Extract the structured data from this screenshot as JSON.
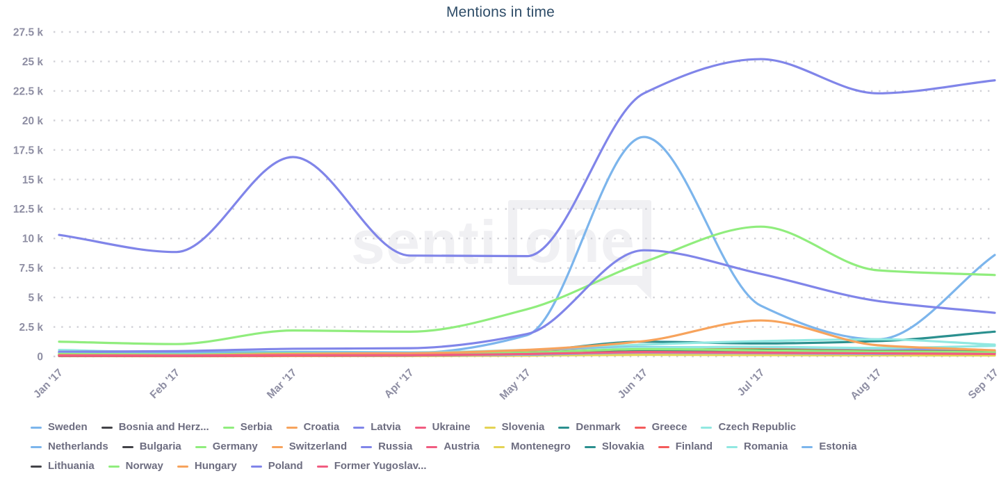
{
  "chart": {
    "title": "Mentions in time",
    "watermark": {
      "part1": "senti",
      "part2": "one"
    }
  },
  "style": {
    "title_color": "#2f4d68",
    "axis_label_color": "#8e8ea3",
    "legend_text_color": "#6d6d80",
    "gridline_color": "#d0d0d6",
    "watermark_color": "#f0f0f3",
    "palette": [
      "#7cb5ec",
      "#434348",
      "#90ed7d",
      "#f7a35c",
      "#8085e9",
      "#f15c80",
      "#e4d354",
      "#2b908f",
      "#f45b5b",
      "#91e8e1"
    ]
  },
  "chart_data": {
    "type": "line",
    "title": "Mentions in time",
    "xlabel": "",
    "ylabel": "",
    "grid": "dotted horizontal gridlines",
    "legend_position": "bottom",
    "x_categories": [
      "Jan '17",
      "Feb '17",
      "Mar '17",
      "Apr '17",
      "May '17",
      "Jun '17",
      "Jul '17",
      "Aug '17",
      "Sep '17"
    ],
    "y_axis": {
      "min": 0,
      "max": 27500,
      "tick_interval": 2500,
      "tick_labels": [
        "0",
        "2.5 k",
        "5 k",
        "7.5 k",
        "10 k",
        "12.5 k",
        "15 k",
        "17.5 k",
        "20 k",
        "22.5 k",
        "25 k",
        "27.5 k"
      ]
    },
    "series": [
      {
        "name": "Sweden",
        "color": "#7cb5ec",
        "values": [
          350,
          300,
          330,
          300,
          1800,
          18600,
          4300,
          1450,
          8600
        ]
      },
      {
        "name": "Bosnia and Herz...",
        "color": "#434348",
        "values": [
          90,
          80,
          100,
          110,
          200,
          400,
          350,
          280,
          220
        ]
      },
      {
        "name": "Serbia",
        "color": "#90ed7d",
        "values": [
          150,
          120,
          160,
          150,
          250,
          450,
          400,
          320,
          260
        ]
      },
      {
        "name": "Croatia",
        "color": "#f7a35c",
        "values": [
          160,
          130,
          190,
          210,
          320,
          600,
          520,
          400,
          310
        ]
      },
      {
        "name": "Latvia",
        "color": "#8085e9",
        "values": [
          300,
          260,
          310,
          300,
          420,
          750,
          820,
          620,
          520
        ]
      },
      {
        "name": "Ukraine",
        "color": "#f15c80",
        "values": [
          150,
          130,
          180,
          200,
          260,
          420,
          390,
          340,
          290
        ]
      },
      {
        "name": "Slovenia",
        "color": "#e4d354",
        "values": [
          35,
          30,
          45,
          50,
          80,
          150,
          130,
          100,
          90
        ]
      },
      {
        "name": "Denmark",
        "color": "#2b908f",
        "values": [
          60,
          60,
          100,
          150,
          450,
          1250,
          1100,
          1300,
          2100
        ]
      },
      {
        "name": "Greece",
        "color": "#f45b5b",
        "values": [
          70,
          60,
          90,
          110,
          220,
          500,
          450,
          380,
          330
        ]
      },
      {
        "name": "Czech Republic",
        "color": "#91e8e1",
        "values": [
          550,
          350,
          400,
          350,
          550,
          1000,
          1300,
          1450,
          1000
        ]
      },
      {
        "name": "Netherlands",
        "color": "#7cb5ec",
        "values": [
          400,
          310,
          360,
          320,
          430,
          800,
          700,
          520,
          430
        ]
      },
      {
        "name": "Bulgaria",
        "color": "#434348",
        "values": [
          110,
          95,
          130,
          160,
          280,
          600,
          550,
          420,
          330
        ]
      },
      {
        "name": "Germany",
        "color": "#90ed7d",
        "values": [
          1250,
          1050,
          2200,
          2100,
          4000,
          8000,
          11000,
          7300,
          6900
        ]
      },
      {
        "name": "Switzerland",
        "color": "#f7a35c",
        "values": [
          210,
          160,
          260,
          260,
          380,
          700,
          620,
          470,
          400
        ]
      },
      {
        "name": "Russia",
        "color": "#8085e9",
        "values": [
          400,
          450,
          650,
          700,
          1900,
          9000,
          7000,
          4700,
          3700
        ]
      },
      {
        "name": "Austria",
        "color": "#f15c80",
        "values": [
          110,
          95,
          130,
          160,
          300,
          520,
          470,
          360,
          260
        ]
      },
      {
        "name": "Montenegro",
        "color": "#e4d354",
        "values": [
          28,
          22,
          35,
          45,
          75,
          140,
          115,
          95,
          85
        ]
      },
      {
        "name": "Slovakia",
        "color": "#2b908f",
        "values": [
          45,
          40,
          65,
          85,
          160,
          420,
          380,
          320,
          300
        ]
      },
      {
        "name": "Finland",
        "color": "#f45b5b",
        "values": [
          55,
          45,
          65,
          85,
          160,
          380,
          330,
          300,
          270
        ]
      },
      {
        "name": "Romania",
        "color": "#91e8e1",
        "values": [
          220,
          170,
          220,
          210,
          320,
          750,
          820,
          720,
          900
        ]
      },
      {
        "name": "Estonia",
        "color": "#7cb5ec",
        "values": [
          110,
          90,
          110,
          100,
          160,
          320,
          270,
          210,
          300
        ]
      },
      {
        "name": "Lithuania",
        "color": "#434348",
        "values": [
          130,
          110,
          160,
          160,
          320,
          600,
          560,
          430,
          380
        ]
      },
      {
        "name": "Norway",
        "color": "#90ed7d",
        "values": [
          210,
          160,
          260,
          210,
          320,
          620,
          520,
          410,
          360
        ]
      },
      {
        "name": "Hungary",
        "color": "#f7a35c",
        "values": [
          110,
          100,
          210,
          260,
          560,
          1300,
          3050,
          950,
          520
        ]
      },
      {
        "name": "Poland",
        "color": "#8085e9",
        "values": [
          10300,
          8850,
          16900,
          8550,
          8500,
          22300,
          25200,
          22300,
          23400
        ]
      },
      {
        "name": "Former Yugoslav...",
        "color": "#f15c80",
        "values": [
          85,
          75,
          105,
          110,
          210,
          360,
          310,
          260,
          210
        ]
      }
    ]
  }
}
